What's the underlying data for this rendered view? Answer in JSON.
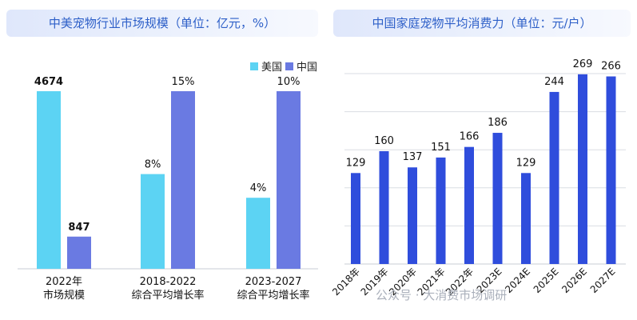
{
  "watermark": {
    "text": "公众号 · 大消费市场调研"
  },
  "colors": {
    "us": "#5cd3f3",
    "china": "#6a7ae2",
    "right_bar": "#2f4ddc",
    "title_text": "#2d5fc8",
    "grid": "#dadde3"
  },
  "chart_data": [
    {
      "type": "bar",
      "title": "中美宠物行业市场规模（单位：亿元，%）",
      "legend_position": "top-right",
      "categories": [
        "2022年\n市场规模",
        "2018-2022\n综合平均增长率",
        "2023-2027\n综合平均增长率"
      ],
      "series": [
        {
          "name": "美国",
          "values": [
            4674,
            8,
            4
          ],
          "labels": [
            "4674",
            "8%",
            "4%"
          ]
        },
        {
          "name": "中国",
          "values": [
            847,
            15,
            10
          ],
          "labels": [
            "847",
            "15%",
            "10%"
          ]
        }
      ],
      "note": "each category group drawn on its own scale"
    },
    {
      "type": "bar",
      "title": "中国家庭宠物平均消费力（单位：元/户）",
      "categories": [
        "2018年",
        "2019年",
        "2020年",
        "2021年",
        "2022年",
        "2023E",
        "2024E",
        "2025E",
        "2026E",
        "2027E"
      ],
      "values": [
        129,
        160,
        137,
        151,
        166,
        186,
        129,
        244,
        269,
        266
      ],
      "ylim": [
        0,
        270
      ],
      "grid": true
    }
  ]
}
